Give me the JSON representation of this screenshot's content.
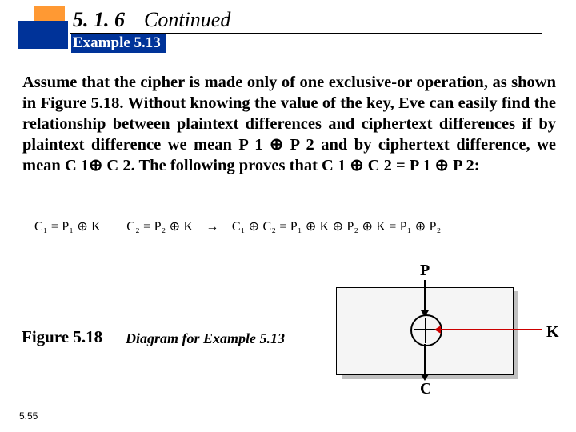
{
  "header": {
    "section": "5. 1. 6",
    "continued": "Continued",
    "example": "Example 5.13"
  },
  "body": "Assume that the cipher is made only of one exclusive-or operation, as shown in Figure 5.18. Without knowing the value of the key, Eve can easily find the relationship between plaintext differences and ciphertext differences if by plaintext difference we mean P 1 ⊕ P 2 and by ciphertext difference, we mean C 1⊕ C 2. The following proves that C 1 ⊕ C 2 = P 1 ⊕ P 2:",
  "equation": {
    "c1": "C",
    "p1": "P",
    "k": "K",
    "text": "C₁ = P₁ ⊕ K  C₂ = P₂ ⊕ K → C₁ ⊕ C₂ = P₁ ⊕ K ⊕ P₂ ⊕ K = P₁ ⊕ P₂"
  },
  "figure": {
    "label": "Figure 5.18",
    "caption": "Diagram for Example 5.13",
    "p": "P",
    "c": "C",
    "k": "K"
  },
  "page": "5.55",
  "colors": {
    "orange": "#ff9933",
    "blue": "#003399",
    "red": "#cc0000",
    "gray_shadow": "#c0c0c0",
    "box_fill": "#f5f5f5"
  }
}
